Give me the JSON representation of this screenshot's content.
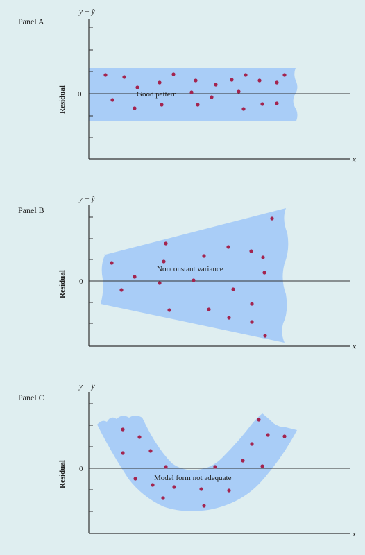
{
  "panels": [
    {
      "label": "Panel A",
      "y_axis_label": "y − ŷ",
      "ylabel": "Residual",
      "xlabel": "x",
      "zero_label": "0",
      "annotation": "Good pattern"
    },
    {
      "label": "Panel B",
      "y_axis_label": "y − ŷ",
      "ylabel": "Residual",
      "xlabel": "x",
      "zero_label": "0",
      "annotation": "Nonconstant variance"
    },
    {
      "label": "Panel C",
      "y_axis_label": "y − ŷ",
      "ylabel": "Residual",
      "xlabel": "x",
      "zero_label": "0",
      "annotation": "Model form not adequate"
    }
  ],
  "colors": {
    "background": "#dfeef0",
    "band": "#a9cdf7",
    "point": "#a3244f",
    "axis": "#333333"
  }
}
